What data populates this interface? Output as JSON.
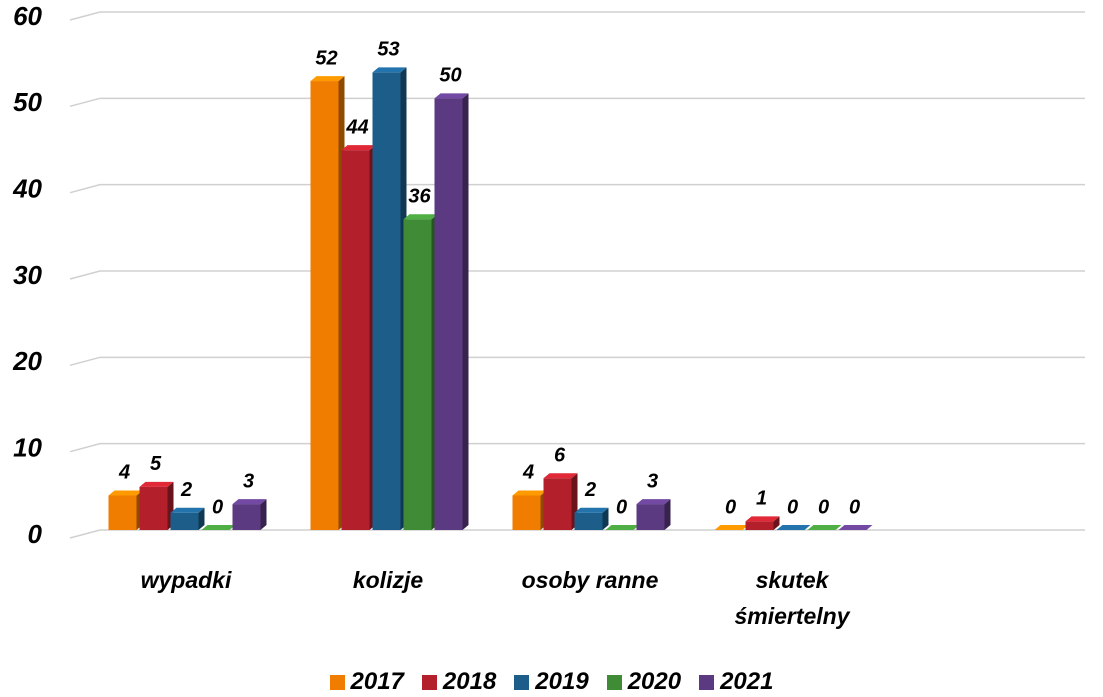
{
  "chart_data": {
    "type": "bar",
    "categories": [
      "wypadki",
      "kolizje",
      "osoby ranne",
      "skutek śmiertelny"
    ],
    "series": [
      {
        "name": "2017",
        "color": "#f07c00",
        "values": [
          4,
          52,
          4,
          0
        ]
      },
      {
        "name": "2018",
        "color": "#b3202c",
        "values": [
          5,
          44,
          6,
          1
        ]
      },
      {
        "name": "2019",
        "color": "#1c5d8a",
        "values": [
          2,
          53,
          2,
          0
        ]
      },
      {
        "name": "2020",
        "color": "#3f8b36",
        "values": [
          0,
          36,
          0,
          0
        ]
      },
      {
        "name": "2021",
        "color": "#5b3a82",
        "values": [
          3,
          50,
          3,
          0
        ]
      }
    ],
    "ylim": [
      0,
      60
    ],
    "yticks": [
      0,
      10,
      20,
      30,
      40,
      50,
      60
    ],
    "grid": true,
    "legend": "bottom"
  }
}
